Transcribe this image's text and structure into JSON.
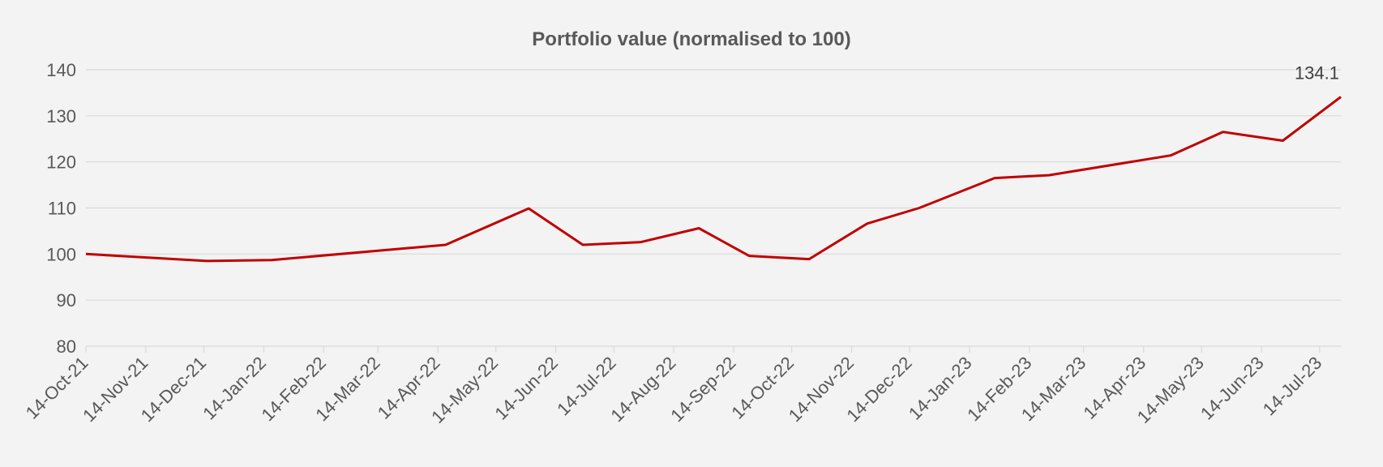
{
  "chart_data": {
    "type": "line",
    "title": "Portfolio value (normalised to 100)",
    "xlabel": "",
    "ylabel": "",
    "ylim": [
      80,
      140
    ],
    "yticks": [
      80,
      90,
      100,
      110,
      120,
      130,
      140
    ],
    "xlim": [
      "2021-10-14",
      "2023-07-25"
    ],
    "grid": true,
    "xticks": [
      {
        "date": "2021-10-14",
        "label": "14-Oct-21"
      },
      {
        "date": "2021-11-14",
        "label": "14-Nov-21"
      },
      {
        "date": "2021-12-14",
        "label": "14-Dec-21"
      },
      {
        "date": "2022-01-14",
        "label": "14-Jan-22"
      },
      {
        "date": "2022-02-14",
        "label": "14-Feb-22"
      },
      {
        "date": "2022-03-14",
        "label": "14-Mar-22"
      },
      {
        "date": "2022-04-14",
        "label": "14-Apr-22"
      },
      {
        "date": "2022-05-14",
        "label": "14-May-22"
      },
      {
        "date": "2022-06-14",
        "label": "14-Jun-22"
      },
      {
        "date": "2022-07-14",
        "label": "14-Jul-22"
      },
      {
        "date": "2022-08-14",
        "label": "14-Aug-22"
      },
      {
        "date": "2022-09-14",
        "label": "14-Sep-22"
      },
      {
        "date": "2022-10-14",
        "label": "14-Oct-22"
      },
      {
        "date": "2022-11-14",
        "label": "14-Nov-22"
      },
      {
        "date": "2022-12-14",
        "label": "14-Dec-22"
      },
      {
        "date": "2023-01-14",
        "label": "14-Jan-23"
      },
      {
        "date": "2023-02-14",
        "label": "14-Feb-23"
      },
      {
        "date": "2023-03-14",
        "label": "14-Mar-23"
      },
      {
        "date": "2023-04-14",
        "label": "14-Apr-23"
      },
      {
        "date": "2023-05-14",
        "label": "14-May-23"
      },
      {
        "date": "2023-06-14",
        "label": "14-Jun-23"
      },
      {
        "date": "2023-07-14",
        "label": "14-Jul-23"
      }
    ],
    "series": [
      {
        "name": "Portfolio value",
        "color": "#c00000",
        "points": [
          [
            "2021-10-14",
            100.0
          ],
          [
            "2021-12-16",
            98.5
          ],
          [
            "2022-01-18",
            98.7
          ],
          [
            "2022-04-18",
            102.0
          ],
          [
            "2022-05-31",
            109.9
          ],
          [
            "2022-06-28",
            102.0
          ],
          [
            "2022-07-28",
            102.6
          ],
          [
            "2022-08-27",
            105.6
          ],
          [
            "2022-09-22",
            99.6
          ],
          [
            "2022-10-23",
            98.9
          ],
          [
            "2022-11-22",
            106.6
          ],
          [
            "2022-12-19",
            110.0
          ],
          [
            "2023-01-27",
            116.5
          ],
          [
            "2023-02-24",
            117.1
          ],
          [
            "2023-04-28",
            121.4
          ],
          [
            "2023-05-25",
            126.5
          ],
          [
            "2023-06-25",
            124.6
          ],
          [
            "2023-07-25",
            134.1
          ]
        ]
      }
    ],
    "data_labels": [
      {
        "date": "2023-07-25",
        "value": 134.1,
        "text": "134.1"
      }
    ]
  }
}
